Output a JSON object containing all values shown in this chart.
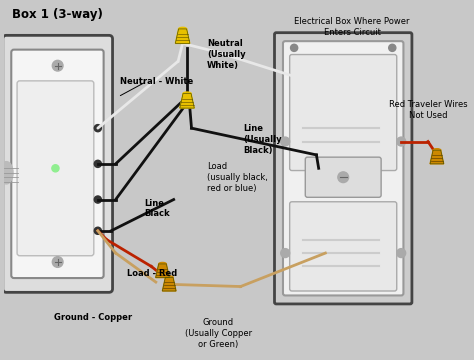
{
  "title": "Box 1 (3-way)",
  "background_color": "#c8c8c8",
  "labels": {
    "neutral_white": "Neutral - White",
    "neutral": "Neutral\n(Usually\nWhite)",
    "line_usually_black": "Line\n(Usually\nBlack)",
    "load": "Load\n(usually black,\nred or blue)",
    "line_black": "Line\nBlack",
    "load_red": "Load - Red",
    "ground_copper": "Ground - Copper",
    "ground": "Ground\n(Usually Copper\nor Green)",
    "electrical_box": "Electrical Box Where Power\nEnters Circuit",
    "red_traveler": "Red Traveler Wires\nNot Used"
  },
  "wire_colors": {
    "white": "#e8e8e8",
    "black": "#111111",
    "red": "#bb2200",
    "copper": "#c8a060",
    "yellow_cap": "#e8c000",
    "orange_cap": "#cc8800"
  },
  "text_color": "#000000",
  "figsize": [
    4.74,
    3.6
  ],
  "dpi": 100
}
